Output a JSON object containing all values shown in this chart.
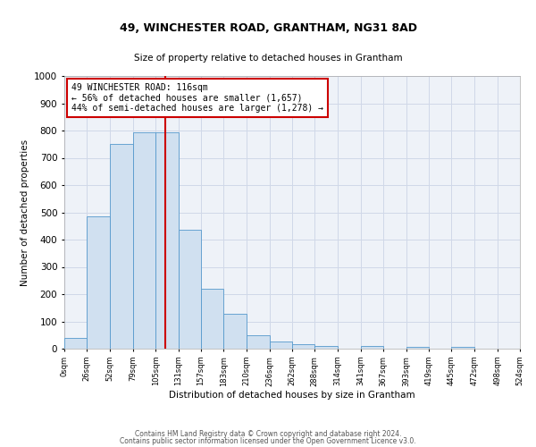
{
  "title": "49, WINCHESTER ROAD, GRANTHAM, NG31 8AD",
  "subtitle": "Size of property relative to detached houses in Grantham",
  "xlabel": "Distribution of detached houses by size in Grantham",
  "ylabel": "Number of detached properties",
  "bin_edges": [
    0,
    26,
    52,
    79,
    105,
    131,
    157,
    183,
    210,
    236,
    262,
    288,
    314,
    341,
    367,
    393,
    419,
    445,
    472,
    498,
    524
  ],
  "bin_counts": [
    40,
    485,
    750,
    795,
    795,
    435,
    220,
    127,
    50,
    27,
    15,
    10,
    0,
    10,
    0,
    8,
    0,
    8,
    0,
    0
  ],
  "bar_facecolor": "#d0e0f0",
  "bar_edgecolor": "#5599cc",
  "grid_color": "#d0d8e8",
  "bg_color": "#eef2f8",
  "vline_x": 116,
  "vline_color": "#cc0000",
  "annotation_text": "49 WINCHESTER ROAD: 116sqm\n← 56% of detached houses are smaller (1,657)\n44% of semi-detached houses are larger (1,278) →",
  "annotation_box_color": "#cc0000",
  "ylim": [
    0,
    1000
  ],
  "yticks": [
    0,
    100,
    200,
    300,
    400,
    500,
    600,
    700,
    800,
    900,
    1000
  ],
  "xtick_labels": [
    "0sqm",
    "26sqm",
    "52sqm",
    "79sqm",
    "105sqm",
    "131sqm",
    "157sqm",
    "183sqm",
    "210sqm",
    "236sqm",
    "262sqm",
    "288sqm",
    "314sqm",
    "341sqm",
    "367sqm",
    "393sqm",
    "419sqm",
    "445sqm",
    "472sqm",
    "498sqm",
    "524sqm"
  ],
  "footer_line1": "Contains HM Land Registry data © Crown copyright and database right 2024.",
  "footer_line2": "Contains public sector information licensed under the Open Government Licence v3.0."
}
